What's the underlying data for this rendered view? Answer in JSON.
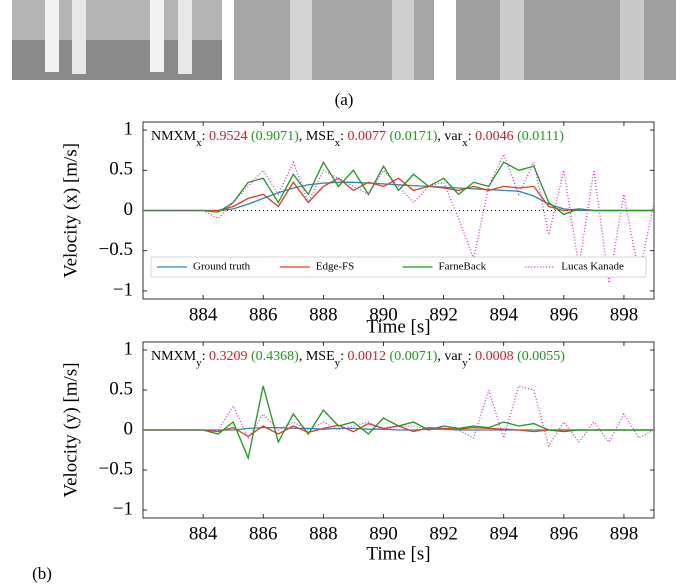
{
  "figure": {
    "panel_a": "(a)",
    "panel_b": "(b)"
  },
  "chart_data": [
    {
      "type": "line",
      "xlabel": "Time [s]",
      "ylabel": "Velocity (x) [m/s]",
      "annotation": [
        {
          "text": "NMXM"
        },
        {
          "text": "x",
          "sub": true
        },
        {
          "text": ": "
        },
        {
          "text": "0.9524",
          "color": "#e8141c"
        },
        {
          "text": " (0.9071)",
          "color": "#1a9a1a"
        },
        {
          "text": ", MSE"
        },
        {
          "text": "x",
          "sub": true
        },
        {
          "text": ": "
        },
        {
          "text": "0.0077",
          "color": "#e8141c"
        },
        {
          "text": " (0.0171)",
          "color": "#1a9a1a"
        },
        {
          "text": ", var"
        },
        {
          "text": "x",
          "sub": true
        },
        {
          "text": ": "
        },
        {
          "text": "0.0046",
          "color": "#e8141c"
        },
        {
          "text": " (0.0111)",
          "color": "#1a9a1a"
        }
      ],
      "xlim": [
        882,
        899
      ],
      "ylim": [
        -1.1,
        1.1
      ],
      "xticks": [
        884,
        886,
        888,
        890,
        892,
        894,
        896,
        898
      ],
      "yticks": [
        {
          "value": -1,
          "label": "−1"
        },
        {
          "value": -0.5,
          "label": "−0.5"
        },
        0,
        0.5,
        1
      ],
      "zero_line": true,
      "legend": "lower center",
      "x": [
        882,
        882.5,
        883,
        883.5,
        884,
        884.5,
        885,
        885.5,
        886,
        886.5,
        887,
        887.5,
        888,
        888.5,
        889,
        889.5,
        890,
        890.5,
        891,
        891.5,
        892,
        892.5,
        893,
        893.5,
        894,
        894.5,
        895,
        895.5,
        896,
        896.5,
        897,
        897.5,
        898,
        898.5,
        899
      ],
      "series": [
        {
          "name": "Ground truth",
          "color": "#2a8ab0",
          "style": "solid",
          "values": [
            0,
            0,
            0,
            0,
            0,
            0,
            0.02,
            0.08,
            0.15,
            0.22,
            0.28,
            0.32,
            0.34,
            0.35,
            0.35,
            0.34,
            0.33,
            0.32,
            0.31,
            0.3,
            0.29,
            0.28,
            0.27,
            0.26,
            0.25,
            0.24,
            0.18,
            0.08,
            0.02,
            0,
            0,
            0,
            0,
            0,
            0
          ]
        },
        {
          "name": "Edge-FS",
          "color": "#e0401c",
          "style": "solid",
          "values": [
            0,
            0,
            0,
            0,
            0,
            0,
            0.05,
            0.15,
            0.2,
            0.05,
            0.35,
            0.1,
            0.3,
            0.4,
            0.25,
            0.35,
            0.3,
            0.4,
            0.25,
            0.3,
            0.28,
            0.25,
            0.3,
            0.25,
            0.3,
            0.28,
            0.3,
            0.05,
            0,
            0.02,
            0,
            0,
            0,
            0,
            0
          ]
        },
        {
          "name": "FarneBack",
          "color": "#1a9a1a",
          "style": "solid",
          "values": [
            0,
            0,
            0,
            0,
            0,
            -0.02,
            0.1,
            0.35,
            0.4,
            0.1,
            0.45,
            0.2,
            0.6,
            0.3,
            0.5,
            0.2,
            0.55,
            0.25,
            0.45,
            0.3,
            0.4,
            0.2,
            0.35,
            0.3,
            0.6,
            0.5,
            0.55,
            0.1,
            -0.05,
            0.02,
            0,
            0,
            0,
            0,
            0
          ]
        },
        {
          "name": "Lucas Kanade",
          "color": "#e020e0",
          "style": "dotted",
          "values": [
            0,
            0,
            0,
            0,
            0,
            -0.1,
            0.1,
            0.3,
            0.5,
            0.2,
            0.6,
            0.1,
            0.5,
            0.4,
            0.3,
            0.2,
            0.5,
            0.3,
            0.1,
            0.3,
            0.35,
            -0.1,
            -0.6,
            0.3,
            0.7,
            0.2,
            0.6,
            -0.3,
            0.5,
            -0.7,
            0.5,
            -0.9,
            0.2,
            -0.8,
            0.1
          ]
        }
      ]
    },
    {
      "type": "line",
      "xlabel": "Time [s]",
      "ylabel": "Velocity (y) [m/s]",
      "annotation": [
        {
          "text": "NMXM"
        },
        {
          "text": "y",
          "sub": true
        },
        {
          "text": ": "
        },
        {
          "text": "0.3209",
          "color": "#e8141c"
        },
        {
          "text": " (0.4368)",
          "color": "#1a9a1a"
        },
        {
          "text": ", MSE"
        },
        {
          "text": "y",
          "sub": true
        },
        {
          "text": ": "
        },
        {
          "text": "0.0012",
          "color": "#e8141c"
        },
        {
          "text": " (0.0071)",
          "color": "#1a9a1a"
        },
        {
          "text": ", var"
        },
        {
          "text": "y",
          "sub": true
        },
        {
          "text": ": "
        },
        {
          "text": "0.0008",
          "color": "#e8141c"
        },
        {
          "text": " (0.0055)",
          "color": "#1a9a1a"
        }
      ],
      "xlim": [
        882,
        899
      ],
      "ylim": [
        -1.1,
        1.1
      ],
      "xticks": [
        884,
        886,
        888,
        890,
        892,
        894,
        896,
        898
      ],
      "yticks": [
        {
          "value": -1,
          "label": "−1"
        },
        {
          "value": -0.5,
          "label": "−0.5"
        },
        0,
        0.5,
        1
      ],
      "zero_line": false,
      "x": [
        882,
        882.5,
        883,
        883.5,
        884,
        884.5,
        885,
        885.5,
        886,
        886.5,
        887,
        887.5,
        888,
        888.5,
        889,
        889.5,
        890,
        890.5,
        891,
        891.5,
        892,
        892.5,
        893,
        893.5,
        894,
        894.5,
        895,
        895.5,
        896,
        896.5,
        897,
        897.5,
        898,
        898.5,
        899
      ],
      "series": [
        {
          "name": "Ground truth",
          "color": "#2a8ab0",
          "style": "solid",
          "values": [
            0,
            0,
            0,
            0,
            0,
            0,
            0,
            0.02,
            0.03,
            0.03,
            0.02,
            0.02,
            0.01,
            0.02,
            0.02,
            0.01,
            0.01,
            0,
            0,
            0.01,
            0.01,
            0,
            0,
            0,
            0,
            0,
            0,
            0,
            0,
            0,
            0,
            0,
            0,
            0,
            0
          ]
        },
        {
          "name": "Edge-FS",
          "color": "#e0401c",
          "style": "solid",
          "values": [
            0,
            0,
            0,
            0,
            0,
            -0.02,
            0.03,
            -0.08,
            0.05,
            -0.05,
            0.05,
            -0.03,
            0.02,
            0.06,
            -0.02,
            0.08,
            0.02,
            0.05,
            -0.02,
            0.03,
            0.02,
            0.01,
            0.03,
            0.02,
            0.01,
            0,
            -0.02,
            0,
            0,
            0,
            0,
            0,
            0,
            0,
            0
          ]
        },
        {
          "name": "FarneBack",
          "color": "#1a9a1a",
          "style": "solid",
          "values": [
            0,
            0,
            0,
            0,
            0,
            -0.05,
            0.1,
            -0.35,
            0.55,
            -0.15,
            0.2,
            -0.05,
            0.25,
            0.05,
            0.1,
            -0.05,
            0.15,
            0.05,
            0.1,
            0,
            0.05,
            0.02,
            0.05,
            0.03,
            0.1,
            0.05,
            0.08,
            0,
            -0.02,
            0,
            0,
            0,
            0,
            0,
            0
          ]
        },
        {
          "name": "Lucas Kanade",
          "color": "#e020e0",
          "style": "dotted",
          "values": [
            0,
            0,
            0,
            0,
            0,
            0,
            0.3,
            -0.1,
            0.2,
            0,
            0.1,
            0,
            0.1,
            0,
            0.05,
            0.1,
            0,
            0.05,
            0.05,
            0,
            0.05,
            0,
            -0.1,
            0.5,
            -0.1,
            0.55,
            0.5,
            -0.2,
            0.1,
            -0.15,
            0.1,
            -0.15,
            0.2,
            -0.1,
            0
          ]
        }
      ]
    }
  ]
}
